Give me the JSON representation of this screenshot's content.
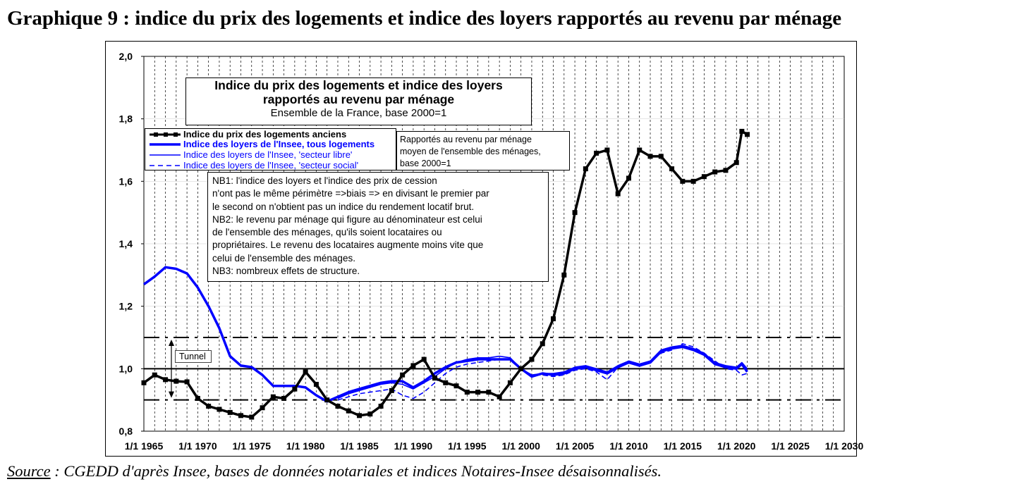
{
  "heading": "Graphique 9 : indice du prix des logements et indice des loyers rapportés au revenu par ménage",
  "source_label": "Source",
  "source_rest": " : CGEDD d'après Insee, bases de données notariales et indices Notaires-Insee désaisonnalisés.",
  "chart_data": {
    "type": "line",
    "title": "Indice du prix des logements et indice des loyers rapportés au revenu par ménage",
    "subtitle": "Ensemble de la France, base 2000=1",
    "x_tick_labels": [
      "1/1 1965",
      "1/1 1970",
      "1/1 1975",
      "1/1 1980",
      "1/1 1985",
      "1/1 1990",
      "1/1 1995",
      "1/1 2000",
      "1/1 2005",
      "1/1 2010",
      "1/1 2015",
      "1/1 2020",
      "1/1 2025",
      "1/1 2030"
    ],
    "x_ticks": [
      1965,
      1970,
      1975,
      1980,
      1985,
      1990,
      1995,
      2000,
      2005,
      2010,
      2015,
      2020,
      2025,
      2030
    ],
    "y_tick_labels": [
      "0,8",
      "1,0",
      "1,2",
      "1,4",
      "1,6",
      "1,8",
      "2,0"
    ],
    "y_ticks": [
      0.8,
      1.0,
      1.2,
      1.4,
      1.6,
      1.8,
      2.0
    ],
    "xlim": [
      1965,
      2030
    ],
    "ylim": [
      0.8,
      2.0
    ],
    "grid": true,
    "reference_lines": [
      {
        "y": 1.0,
        "style": "solid"
      },
      {
        "y": 1.1,
        "style": "dash-dot"
      },
      {
        "y": 0.9,
        "style": "dash-dot"
      }
    ],
    "tunnel_label": "Tunnel",
    "series": [
      {
        "name": "Indice du prix des logements anciens",
        "color": "#000000",
        "style": "bold-markers",
        "x": [
          1965,
          1966,
          1967,
          1968,
          1969,
          1970,
          1971,
          1972,
          1973,
          1974,
          1975,
          1976,
          1977,
          1978,
          1979,
          1980,
          1981,
          1982,
          1983,
          1984,
          1985,
          1986,
          1987,
          1988,
          1989,
          1990,
          1991,
          1992,
          1993,
          1994,
          1995,
          1996,
          1997,
          1998,
          1999,
          2000,
          2001,
          2002,
          2003,
          2004,
          2005,
          2006,
          2007,
          2008,
          2009,
          2010,
          2011,
          2012,
          2013,
          2014,
          2015,
          2016,
          2017,
          2018,
          2019,
          2020,
          2020.5,
          2021
        ],
        "y": [
          0.955,
          0.98,
          0.965,
          0.96,
          0.958,
          0.905,
          0.88,
          0.87,
          0.86,
          0.85,
          0.845,
          0.875,
          0.91,
          0.905,
          0.935,
          0.99,
          0.95,
          0.9,
          0.88,
          0.865,
          0.85,
          0.855,
          0.88,
          0.93,
          0.98,
          1.01,
          1.03,
          0.97,
          0.955,
          0.945,
          0.925,
          0.925,
          0.925,
          0.91,
          0.955,
          1.0,
          1.03,
          1.08,
          1.16,
          1.3,
          1.5,
          1.64,
          1.69,
          1.7,
          1.56,
          1.61,
          1.7,
          1.68,
          1.68,
          1.64,
          1.6,
          1.6,
          1.615,
          1.63,
          1.635,
          1.66,
          1.76,
          1.75
        ]
      },
      {
        "name": "Indice des loyers de l'Insee, tous logements",
        "color": "#0000ff",
        "style": "bold",
        "x": [
          1965,
          1966,
          1967,
          1968,
          1969,
          1970,
          1971,
          1972,
          1973,
          1974,
          1975,
          1976,
          1977,
          1978,
          1979,
          1980,
          1981,
          1982,
          1983,
          1984,
          1985,
          1986,
          1987,
          1988,
          1989,
          1990,
          1991,
          1992,
          1993,
          1994,
          1995,
          1996,
          1997,
          1998,
          1999,
          2000,
          2001,
          2002,
          2003,
          2004,
          2005,
          2006,
          2007,
          2008,
          2009,
          2010,
          2011,
          2012,
          2013,
          2014,
          2015,
          2016,
          2017,
          2018,
          2019,
          2020,
          2020.5,
          2021
        ],
        "y": [
          1.27,
          1.295,
          1.325,
          1.32,
          1.305,
          1.26,
          1.2,
          1.13,
          1.04,
          1.01,
          1.005,
          0.98,
          0.945,
          0.945,
          0.945,
          0.94,
          0.915,
          0.895,
          0.91,
          0.925,
          0.935,
          0.945,
          0.955,
          0.96,
          0.96,
          0.94,
          0.96,
          0.985,
          1.005,
          1.02,
          1.025,
          1.03,
          1.03,
          1.03,
          1.03,
          1.0,
          0.975,
          0.985,
          0.98,
          0.985,
          1.0,
          1.005,
          0.995,
          0.985,
          1.005,
          1.02,
          1.01,
          1.02,
          1.055,
          1.065,
          1.07,
          1.06,
          1.045,
          1.015,
          1.005,
          1.0,
          1.015,
          0.99
        ]
      },
      {
        "name": "Indice des loyers de l'Insee, 'secteur libre'",
        "color": "#0000ff",
        "style": "thin",
        "x": [
          1983,
          1984,
          1985,
          1986,
          1987,
          1988,
          1989,
          1990,
          1991,
          1992,
          1993,
          1994,
          1995,
          1996,
          1997,
          1998,
          1999,
          2000,
          2001,
          2002,
          2003,
          2004,
          2005,
          2006,
          2007,
          2008,
          2009,
          2010,
          2011,
          2012,
          2013,
          2014,
          2015,
          2016,
          2017,
          2018,
          2019,
          2020,
          2020.5,
          2021
        ],
        "y": [
          0.905,
          0.92,
          0.93,
          0.94,
          0.95,
          0.955,
          0.95,
          0.935,
          0.955,
          0.975,
          1.0,
          1.02,
          1.03,
          1.035,
          1.035,
          1.04,
          1.035,
          1.0,
          0.98,
          0.985,
          0.985,
          0.99,
          1.005,
          1.01,
          1.0,
          0.99,
          1.01,
          1.025,
          1.015,
          1.025,
          1.06,
          1.07,
          1.075,
          1.065,
          1.05,
          1.02,
          1.01,
          1.005,
          1.02,
          1.0
        ]
      },
      {
        "name": "Indice des loyers de l'Insee, 'secteur social'",
        "color": "#0000ff",
        "style": "dashed",
        "x": [
          1983,
          1984,
          1985,
          1986,
          1987,
          1988,
          1989,
          1990,
          1991,
          1992,
          1993,
          1994,
          1995,
          1996,
          1997,
          1998,
          1999,
          2000,
          2001,
          2002,
          2003,
          2004,
          2005,
          2006,
          2007,
          2008,
          2009,
          2010,
          2011,
          2012,
          2013,
          2014,
          2015,
          2016,
          2017,
          2018,
          2019,
          2020,
          2020.5,
          2021
        ],
        "y": [
          0.9,
          0.91,
          0.92,
          0.925,
          0.93,
          0.935,
          0.915,
          0.905,
          0.925,
          0.955,
          0.985,
          1.005,
          1.015,
          1.02,
          1.025,
          1.03,
          1.03,
          1.0,
          0.98,
          0.98,
          0.975,
          0.98,
          0.995,
          1.0,
          0.99,
          0.965,
          1.005,
          1.02,
          1.01,
          1.025,
          1.05,
          1.06,
          1.08,
          1.07,
          1.05,
          1.025,
          1.0,
          0.995,
          0.98,
          0.985
        ]
      }
    ]
  },
  "note_rapportes": [
    "Rapportés au revenu par ménage",
    "moyen de l'ensemble des ménages,",
    "base 2000=1"
  ],
  "note_nb": [
    "NB1: l'indice des loyers et l'indice des prix de cession",
    "n'ont pas le même périmètre =>biais => en divisant le premier par",
    "le second on n'obtient pas un indice du rendement locatif brut.",
    "NB2: le revenu par ménage qui figure au dénominateur est celui",
    "de l'ensemble des ménages, qu'ils soient locataires ou",
    "propriétaires.  Le revenu des locataires augmente moins vite que",
    "celui de l'ensemble des ménages.",
    "NB3: nombreux effets de structure."
  ]
}
